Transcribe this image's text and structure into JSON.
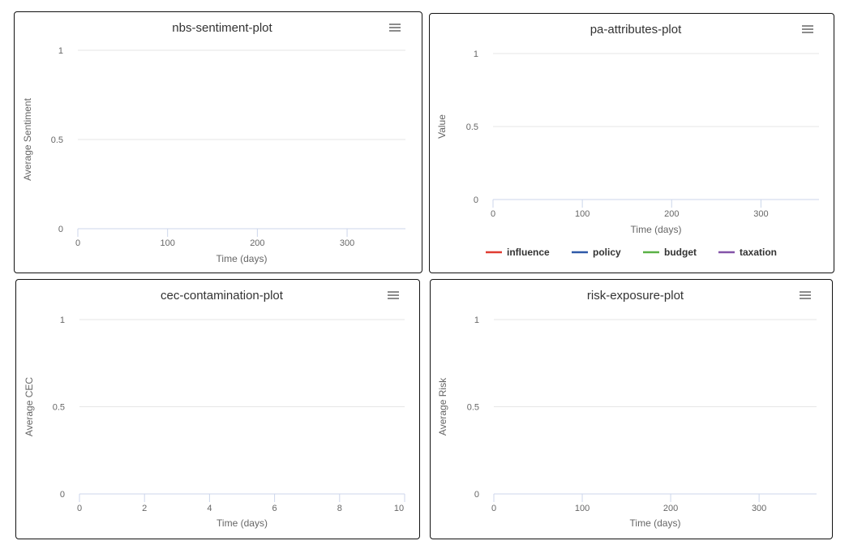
{
  "chart_data": [
    {
      "id": "nbs",
      "type": "line",
      "title": "nbs-sentiment-plot",
      "xlabel": "Time (days)",
      "ylabel": "Average Sentiment",
      "xlim": [
        0,
        365
      ],
      "ylim": [
        0,
        1
      ],
      "xticks": [
        "0",
        "100",
        "200",
        "300"
      ],
      "yticks": [
        "0",
        "0.5",
        "1"
      ],
      "series": [],
      "legend": [],
      "menu_icon": "hamburger-icon"
    },
    {
      "id": "pa",
      "type": "line",
      "title": "pa-attributes-plot",
      "xlabel": "Time (days)",
      "ylabel": "Value",
      "xlim": [
        0,
        365
      ],
      "ylim": [
        0,
        1
      ],
      "xticks": [
        "0",
        "100",
        "200",
        "300"
      ],
      "yticks": [
        "0",
        "0.5",
        "1"
      ],
      "series": [
        {
          "name": "influence",
          "color": "#e03c31",
          "values": []
        },
        {
          "name": "policy",
          "color": "#2f5aa8",
          "values": []
        },
        {
          "name": "budget",
          "color": "#5bb146",
          "values": []
        },
        {
          "name": "taxation",
          "color": "#8454a8",
          "values": []
        }
      ],
      "legend": [
        "influence",
        "policy",
        "budget",
        "taxation"
      ],
      "legend_position": "bottom",
      "menu_icon": "hamburger-icon"
    },
    {
      "id": "cec",
      "type": "line",
      "title": "cec-contamination-plot",
      "xlabel": "Time (days)",
      "ylabel": "Average CEC",
      "xlim": [
        0,
        10
      ],
      "ylim": [
        0,
        1
      ],
      "xticks": [
        "0",
        "2",
        "4",
        "6",
        "8",
        "10"
      ],
      "yticks": [
        "0",
        "0.5",
        "1"
      ],
      "series": [],
      "legend": [],
      "menu_icon": "hamburger-icon"
    },
    {
      "id": "risk",
      "type": "line",
      "title": "risk-exposure-plot",
      "xlabel": "Time (days)",
      "ylabel": "Average Risk",
      "xlim": [
        0,
        365
      ],
      "ylim": [
        0,
        1
      ],
      "xticks": [
        "0",
        "100",
        "200",
        "300"
      ],
      "yticks": [
        "0",
        "0.5",
        "1"
      ],
      "series": [],
      "legend": [],
      "menu_icon": "hamburger-icon"
    }
  ]
}
